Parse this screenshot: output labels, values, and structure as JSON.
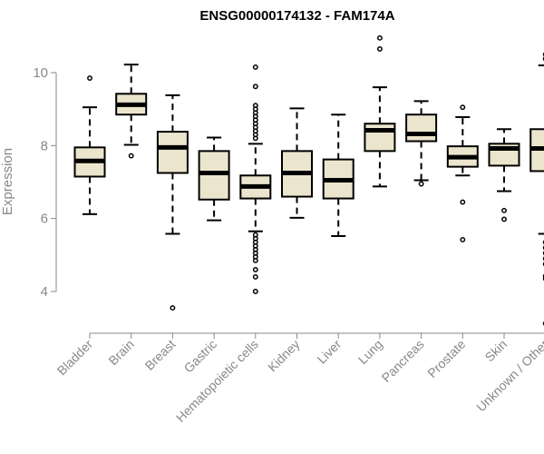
{
  "chart_data": {
    "type": "boxplot",
    "title": "ENSG00000174132 - FAM174A",
    "ylabel": "Expression",
    "xlabel": "",
    "ylim": [
      3,
      11
    ],
    "yticks": [
      4,
      6,
      8,
      10
    ],
    "box_fill": "#ece5cd",
    "categories": [
      "Bladder",
      "Brain",
      "Breast",
      "Gastric",
      "Hematopoietic cells",
      "Kidney",
      "Liver",
      "Lung",
      "Pancreas",
      "Prostate",
      "Skin",
      "Unknown / Other"
    ],
    "boxes": [
      {
        "name": "Bladder",
        "whisker_low": 6.12,
        "q1": 7.15,
        "median": 7.58,
        "q3": 7.95,
        "whisker_high": 9.05,
        "outliers": [
          9.85
        ]
      },
      {
        "name": "Brain",
        "whisker_low": 8.02,
        "q1": 8.85,
        "median": 9.12,
        "q3": 9.42,
        "whisker_high": 10.22,
        "outliers": [
          7.72
        ]
      },
      {
        "name": "Breast",
        "whisker_low": 5.58,
        "q1": 7.25,
        "median": 7.95,
        "q3": 8.38,
        "whisker_high": 9.38,
        "outliers": [
          3.55
        ]
      },
      {
        "name": "Gastric",
        "whisker_low": 5.95,
        "q1": 6.52,
        "median": 7.25,
        "q3": 7.85,
        "whisker_high": 8.22,
        "outliers": []
      },
      {
        "name": "Hematopoietic cells",
        "whisker_low": 5.65,
        "q1": 6.55,
        "median": 6.88,
        "q3": 7.18,
        "whisker_high": 8.05,
        "outliers": [
          10.15,
          9.62,
          9.1,
          9.0,
          8.9,
          8.8,
          8.7,
          8.6,
          8.5,
          8.4,
          8.3,
          8.2,
          5.55,
          5.45,
          5.35,
          5.25,
          5.15,
          5.05,
          4.95,
          4.85,
          4.6,
          4.4,
          4.0
        ]
      },
      {
        "name": "Kidney",
        "whisker_low": 6.02,
        "q1": 6.6,
        "median": 7.25,
        "q3": 7.85,
        "whisker_high": 9.02,
        "outliers": []
      },
      {
        "name": "Liver",
        "whisker_low": 5.52,
        "q1": 6.55,
        "median": 7.05,
        "q3": 7.62,
        "whisker_high": 8.85,
        "outliers": []
      },
      {
        "name": "Lung",
        "whisker_low": 6.88,
        "q1": 7.85,
        "median": 8.42,
        "q3": 8.6,
        "whisker_high": 9.6,
        "outliers": [
          10.95,
          10.65
        ]
      },
      {
        "name": "Pancreas",
        "whisker_low": 7.05,
        "q1": 8.12,
        "median": 8.32,
        "q3": 8.85,
        "whisker_high": 9.22,
        "outliers": [
          6.95
        ]
      },
      {
        "name": "Prostate",
        "whisker_low": 7.18,
        "q1": 7.42,
        "median": 7.68,
        "q3": 7.98,
        "whisker_high": 8.78,
        "outliers": [
          9.05,
          6.45,
          5.42
        ]
      },
      {
        "name": "Skin",
        "whisker_low": 6.75,
        "q1": 7.45,
        "median": 7.92,
        "q3": 8.05,
        "whisker_high": 8.45,
        "outliers": [
          6.22,
          5.98
        ]
      },
      {
        "name": "Unknown / Other",
        "whisker_low": 5.58,
        "q1": 7.3,
        "median": 7.92,
        "q3": 8.45,
        "whisker_high": 10.2,
        "outliers": [
          10.5,
          10.38,
          5.35,
          5.2,
          5.05,
          4.9,
          4.75,
          4.42,
          4.35,
          3.12
        ]
      }
    ]
  }
}
